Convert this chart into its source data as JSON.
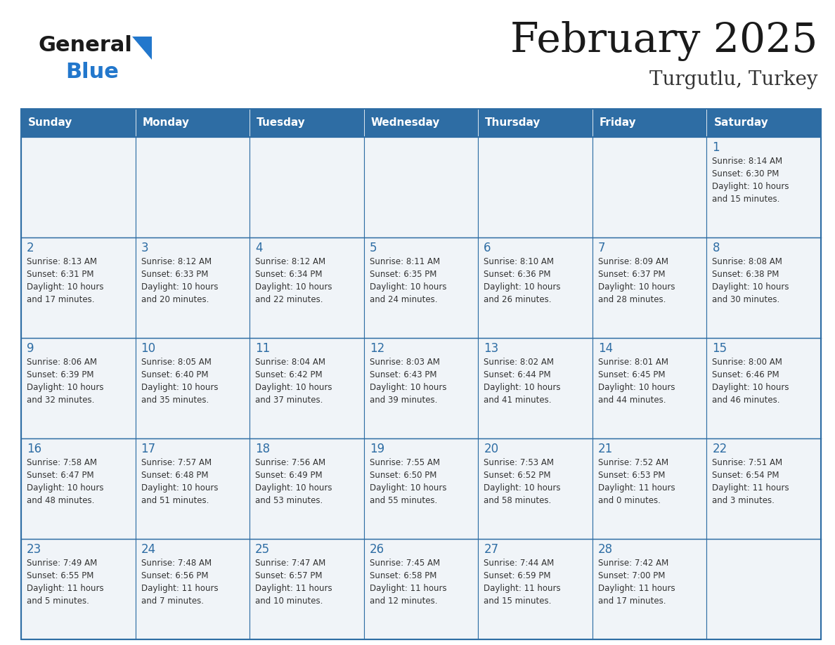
{
  "title": "February 2025",
  "subtitle": "Turgutlu, Turkey",
  "header_color": "#2E6DA4",
  "header_text_color": "#FFFFFF",
  "cell_bg_color": "#F0F4F8",
  "day_names": [
    "Sunday",
    "Monday",
    "Tuesday",
    "Wednesday",
    "Thursday",
    "Friday",
    "Saturday"
  ],
  "border_color": "#2E6DA4",
  "title_color": "#1a1a1a",
  "subtitle_color": "#333333",
  "day_number_color": "#2E6DA4",
  "info_color": "#333333",
  "logo_general_color": "#1a1a1a",
  "logo_blue_color": "#2277CC",
  "fig_width": 11.88,
  "fig_height": 9.18,
  "dpi": 100,
  "calendar": [
    [
      {
        "day": 0,
        "info": ""
      },
      {
        "day": 0,
        "info": ""
      },
      {
        "day": 0,
        "info": ""
      },
      {
        "day": 0,
        "info": ""
      },
      {
        "day": 0,
        "info": ""
      },
      {
        "day": 0,
        "info": ""
      },
      {
        "day": 1,
        "info": "Sunrise: 8:14 AM\nSunset: 6:30 PM\nDaylight: 10 hours\nand 15 minutes."
      }
    ],
    [
      {
        "day": 2,
        "info": "Sunrise: 8:13 AM\nSunset: 6:31 PM\nDaylight: 10 hours\nand 17 minutes."
      },
      {
        "day": 3,
        "info": "Sunrise: 8:12 AM\nSunset: 6:33 PM\nDaylight: 10 hours\nand 20 minutes."
      },
      {
        "day": 4,
        "info": "Sunrise: 8:12 AM\nSunset: 6:34 PM\nDaylight: 10 hours\nand 22 minutes."
      },
      {
        "day": 5,
        "info": "Sunrise: 8:11 AM\nSunset: 6:35 PM\nDaylight: 10 hours\nand 24 minutes."
      },
      {
        "day": 6,
        "info": "Sunrise: 8:10 AM\nSunset: 6:36 PM\nDaylight: 10 hours\nand 26 minutes."
      },
      {
        "day": 7,
        "info": "Sunrise: 8:09 AM\nSunset: 6:37 PM\nDaylight: 10 hours\nand 28 minutes."
      },
      {
        "day": 8,
        "info": "Sunrise: 8:08 AM\nSunset: 6:38 PM\nDaylight: 10 hours\nand 30 minutes."
      }
    ],
    [
      {
        "day": 9,
        "info": "Sunrise: 8:06 AM\nSunset: 6:39 PM\nDaylight: 10 hours\nand 32 minutes."
      },
      {
        "day": 10,
        "info": "Sunrise: 8:05 AM\nSunset: 6:40 PM\nDaylight: 10 hours\nand 35 minutes."
      },
      {
        "day": 11,
        "info": "Sunrise: 8:04 AM\nSunset: 6:42 PM\nDaylight: 10 hours\nand 37 minutes."
      },
      {
        "day": 12,
        "info": "Sunrise: 8:03 AM\nSunset: 6:43 PM\nDaylight: 10 hours\nand 39 minutes."
      },
      {
        "day": 13,
        "info": "Sunrise: 8:02 AM\nSunset: 6:44 PM\nDaylight: 10 hours\nand 41 minutes."
      },
      {
        "day": 14,
        "info": "Sunrise: 8:01 AM\nSunset: 6:45 PM\nDaylight: 10 hours\nand 44 minutes."
      },
      {
        "day": 15,
        "info": "Sunrise: 8:00 AM\nSunset: 6:46 PM\nDaylight: 10 hours\nand 46 minutes."
      }
    ],
    [
      {
        "day": 16,
        "info": "Sunrise: 7:58 AM\nSunset: 6:47 PM\nDaylight: 10 hours\nand 48 minutes."
      },
      {
        "day": 17,
        "info": "Sunrise: 7:57 AM\nSunset: 6:48 PM\nDaylight: 10 hours\nand 51 minutes."
      },
      {
        "day": 18,
        "info": "Sunrise: 7:56 AM\nSunset: 6:49 PM\nDaylight: 10 hours\nand 53 minutes."
      },
      {
        "day": 19,
        "info": "Sunrise: 7:55 AM\nSunset: 6:50 PM\nDaylight: 10 hours\nand 55 minutes."
      },
      {
        "day": 20,
        "info": "Sunrise: 7:53 AM\nSunset: 6:52 PM\nDaylight: 10 hours\nand 58 minutes."
      },
      {
        "day": 21,
        "info": "Sunrise: 7:52 AM\nSunset: 6:53 PM\nDaylight: 11 hours\nand 0 minutes."
      },
      {
        "day": 22,
        "info": "Sunrise: 7:51 AM\nSunset: 6:54 PM\nDaylight: 11 hours\nand 3 minutes."
      }
    ],
    [
      {
        "day": 23,
        "info": "Sunrise: 7:49 AM\nSunset: 6:55 PM\nDaylight: 11 hours\nand 5 minutes."
      },
      {
        "day": 24,
        "info": "Sunrise: 7:48 AM\nSunset: 6:56 PM\nDaylight: 11 hours\nand 7 minutes."
      },
      {
        "day": 25,
        "info": "Sunrise: 7:47 AM\nSunset: 6:57 PM\nDaylight: 11 hours\nand 10 minutes."
      },
      {
        "day": 26,
        "info": "Sunrise: 7:45 AM\nSunset: 6:58 PM\nDaylight: 11 hours\nand 12 minutes."
      },
      {
        "day": 27,
        "info": "Sunrise: 7:44 AM\nSunset: 6:59 PM\nDaylight: 11 hours\nand 15 minutes."
      },
      {
        "day": 28,
        "info": "Sunrise: 7:42 AM\nSunset: 7:00 PM\nDaylight: 11 hours\nand 17 minutes."
      },
      {
        "day": 0,
        "info": ""
      }
    ]
  ]
}
